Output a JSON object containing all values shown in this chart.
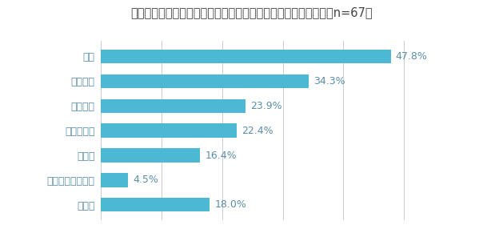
{
  "title": "》設問３》どんなジャンルの商品が人気ですか？（複数回答可、n=67）",
  "title_raw": "【設問３】どんなジャンルの商品が人気ですか？（複数回答可、n=67）",
  "categories": [
    "その他",
    "家具・インテリア",
    "日用品",
    "食品・飲料",
    "服飾雑貨",
    "アパレル",
    "雑貨"
  ],
  "values": [
    18.0,
    4.5,
    16.4,
    22.4,
    23.9,
    34.3,
    47.8
  ],
  "labels": [
    "18.0%",
    "4.5%",
    "16.4%",
    "22.4%",
    "23.9%",
    "34.3%",
    "47.8%"
  ],
  "bar_color": "#4db8d4",
  "text_color": "#5a8fa8",
  "title_color": "#444444",
  "background_color": "#ffffff",
  "grid_color": "#cccccc",
  "xlim": [
    0,
    58
  ],
  "title_fontsize": 10.5,
  "label_fontsize": 9,
  "value_fontsize": 9
}
